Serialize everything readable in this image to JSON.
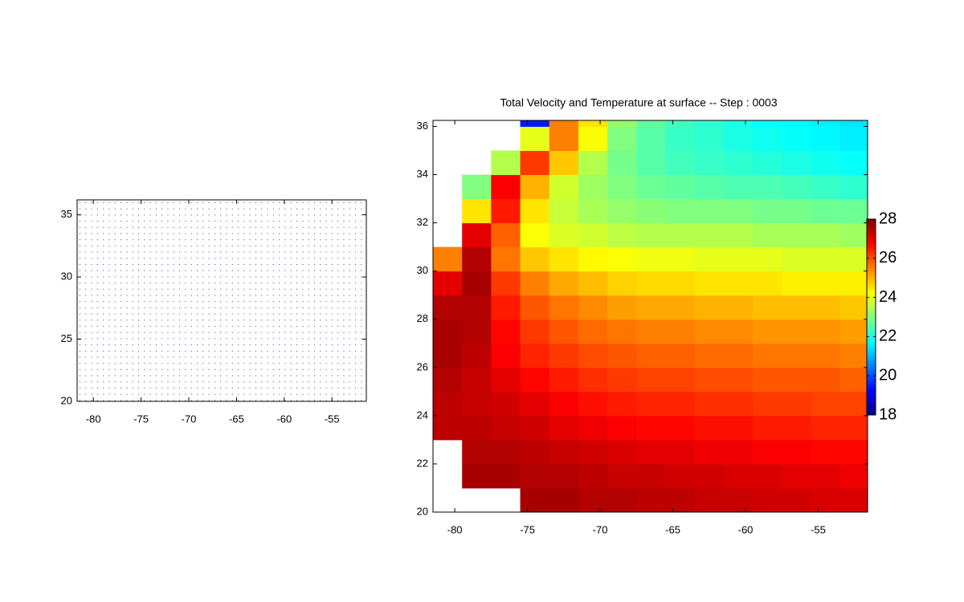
{
  "chart_data": [
    {
      "type": "quiver",
      "xlim": [
        -81.7,
        -51.4
      ],
      "ylim": [
        20,
        36.2
      ],
      "xticks": [
        -80,
        -75,
        -70,
        -65,
        -60,
        -55
      ],
      "yticks": [
        20,
        25,
        30,
        35
      ]
    },
    {
      "type": "heatmap",
      "title": "Total Velocity and Temperature at surface -- Step : 0003",
      "xlim": [
        -81.5,
        -51.6
      ],
      "ylim": [
        20,
        36.25
      ],
      "xticks": [
        -80,
        -75,
        -70,
        -65,
        -60,
        -55
      ],
      "yticks": [
        20,
        22,
        24,
        26,
        28,
        30,
        32,
        34,
        36
      ],
      "x": [
        -80.5,
        -78.5,
        -76.5,
        -74.5,
        -72.5,
        -70.5,
        -68.5,
        -66.5,
        -64.5,
        -62.5,
        -60.5,
        -58.5,
        -56.5,
        -54.5,
        -52.5
      ],
      "y": [
        20.5,
        21.5,
        22.5,
        23.5,
        24.5,
        25.5,
        26.5,
        27.5,
        28.5,
        29.5,
        30.5,
        31.5,
        32.5,
        33.5,
        34.5,
        35.5,
        36.5
      ],
      "z": [
        [
          null,
          null,
          null,
          27.6,
          27.6,
          27.5,
          27.5,
          27.4,
          27.4,
          27.3,
          27.3,
          27.2,
          27.2,
          27.1,
          27.1
        ],
        [
          null,
          27.6,
          27.6,
          27.5,
          27.5,
          27.4,
          27.3,
          27.3,
          27.2,
          27.2,
          27.1,
          27.1,
          27.0,
          27.0,
          26.9
        ],
        [
          null,
          27.5,
          27.5,
          27.4,
          27.3,
          27.2,
          27.1,
          27.0,
          27.0,
          26.9,
          26.9,
          26.8,
          26.8,
          26.7,
          26.7
        ],
        [
          27.4,
          27.4,
          27.3,
          27.2,
          27.0,
          26.9,
          26.8,
          26.7,
          26.7,
          26.6,
          26.6,
          26.5,
          26.5,
          26.4,
          26.4
        ],
        [
          27.4,
          27.3,
          27.2,
          27.0,
          26.8,
          26.6,
          26.5,
          26.4,
          26.4,
          26.3,
          26.3,
          26.2,
          26.2,
          26.1,
          26.1
        ],
        [
          27.5,
          27.3,
          27.0,
          26.7,
          26.5,
          26.3,
          26.2,
          26.1,
          26.1,
          26.0,
          26.0,
          25.9,
          25.9,
          25.9,
          25.8
        ],
        [
          27.6,
          27.4,
          26.8,
          26.4,
          26.2,
          26.0,
          25.9,
          25.8,
          25.8,
          25.7,
          25.7,
          25.6,
          25.6,
          25.6,
          25.5
        ],
        [
          27.6,
          27.5,
          26.7,
          26.2,
          25.9,
          25.7,
          25.6,
          25.5,
          25.5,
          25.4,
          25.4,
          25.3,
          25.3,
          25.3,
          25.2
        ],
        [
          27.5,
          27.5,
          26.5,
          25.9,
          25.6,
          25.4,
          25.2,
          25.1,
          25.1,
          25.0,
          25.0,
          24.9,
          24.9,
          24.9,
          24.8
        ],
        [
          27.0,
          27.6,
          26.2,
          25.5,
          25.1,
          24.9,
          24.7,
          24.6,
          24.6,
          24.5,
          24.5,
          24.5,
          24.4,
          24.4,
          24.4
        ],
        [
          25.5,
          27.5,
          25.6,
          24.8,
          24.5,
          24.3,
          24.2,
          24.1,
          24.1,
          24.0,
          24.0,
          24.0,
          23.9,
          23.9,
          23.9
        ],
        [
          null,
          27.0,
          25.8,
          24.2,
          23.9,
          23.8,
          23.6,
          23.5,
          23.5,
          23.5,
          23.5,
          23.4,
          23.4,
          23.4,
          23.3
        ],
        [
          null,
          24.5,
          26.5,
          24.5,
          23.7,
          23.4,
          23.2,
          23.1,
          23.0,
          23.0,
          23.0,
          22.9,
          22.9,
          22.8,
          22.8
        ],
        [
          null,
          23.0,
          26.8,
          25.0,
          23.8,
          23.3,
          23.0,
          22.8,
          22.7,
          22.6,
          22.5,
          22.5,
          22.4,
          22.3,
          22.2
        ],
        [
          null,
          null,
          23.5,
          26.2,
          24.8,
          23.5,
          22.9,
          22.6,
          22.4,
          22.3,
          22.2,
          22.1,
          22.0,
          21.9,
          21.8
        ],
        [
          null,
          null,
          null,
          24.0,
          25.5,
          24.2,
          23.0,
          22.6,
          22.3,
          22.2,
          22.0,
          21.9,
          21.8,
          21.7,
          21.6
        ],
        [
          null,
          null,
          null,
          19.5,
          25.5,
          24.5,
          23.2,
          22.7,
          22.4,
          22.2,
          22.0,
          21.8,
          21.7,
          21.6,
          21.5
        ]
      ],
      "colormap": "jet",
      "clim": [
        18,
        28
      ],
      "cticks": [
        18,
        20,
        22,
        24,
        26,
        28
      ]
    }
  ]
}
